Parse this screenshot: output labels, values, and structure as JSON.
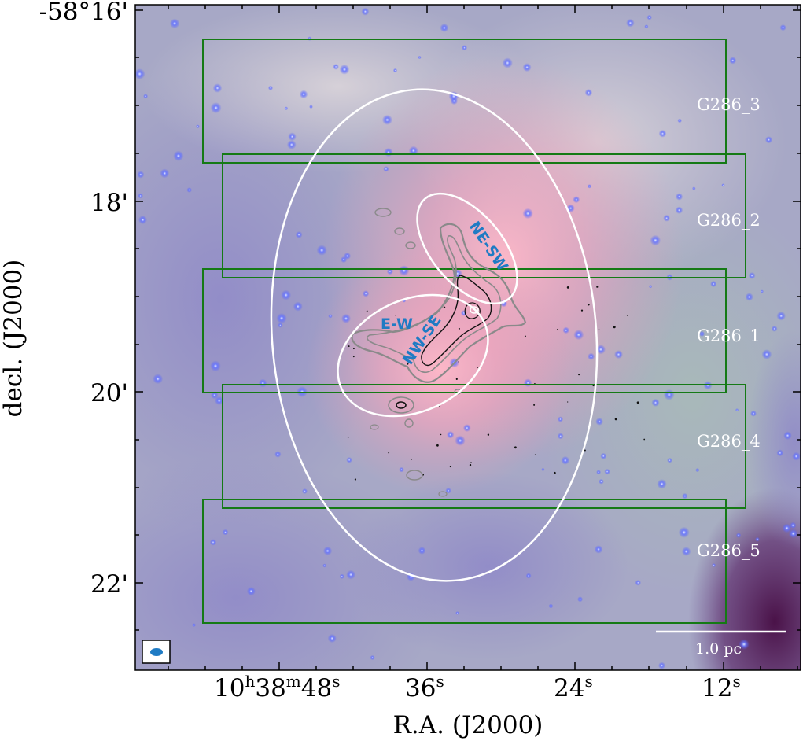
{
  "figure": {
    "ylabel": "decl. (J2000)",
    "xlabel": "R.A. (J2000)",
    "y_ticks": [
      {
        "label": "-58°16'"
      },
      {
        "label": "18'"
      },
      {
        "label": "20'"
      },
      {
        "label": "22'"
      }
    ],
    "x_ticks": [
      {
        "hours": "10",
        "minutes": "38",
        "seconds": "48"
      },
      {
        "seconds": "36"
      },
      {
        "seconds": "24"
      },
      {
        "seconds": "12"
      }
    ],
    "x_tick_units": {
      "h": "h",
      "m": "m",
      "s": "s"
    },
    "regions": [
      {
        "label": "G286_3"
      },
      {
        "label": "G286_2"
      },
      {
        "label": "G286_1"
      },
      {
        "label": "G286_4"
      },
      {
        "label": "G286_5"
      }
    ],
    "filaments": {
      "ne_sw": "NE-SW",
      "e_w": "E-W",
      "nw_se": "NW-SE"
    },
    "scale_bar": {
      "label": "1.0 pc"
    },
    "colors": {
      "region_boxes": "#157a15",
      "ellipses": "#ffffff",
      "filament_labels": "#1f7bc4",
      "contours_outer": "#8a8a8a",
      "contours_inner": "#111111",
      "beam": "#1f7bc4"
    }
  }
}
